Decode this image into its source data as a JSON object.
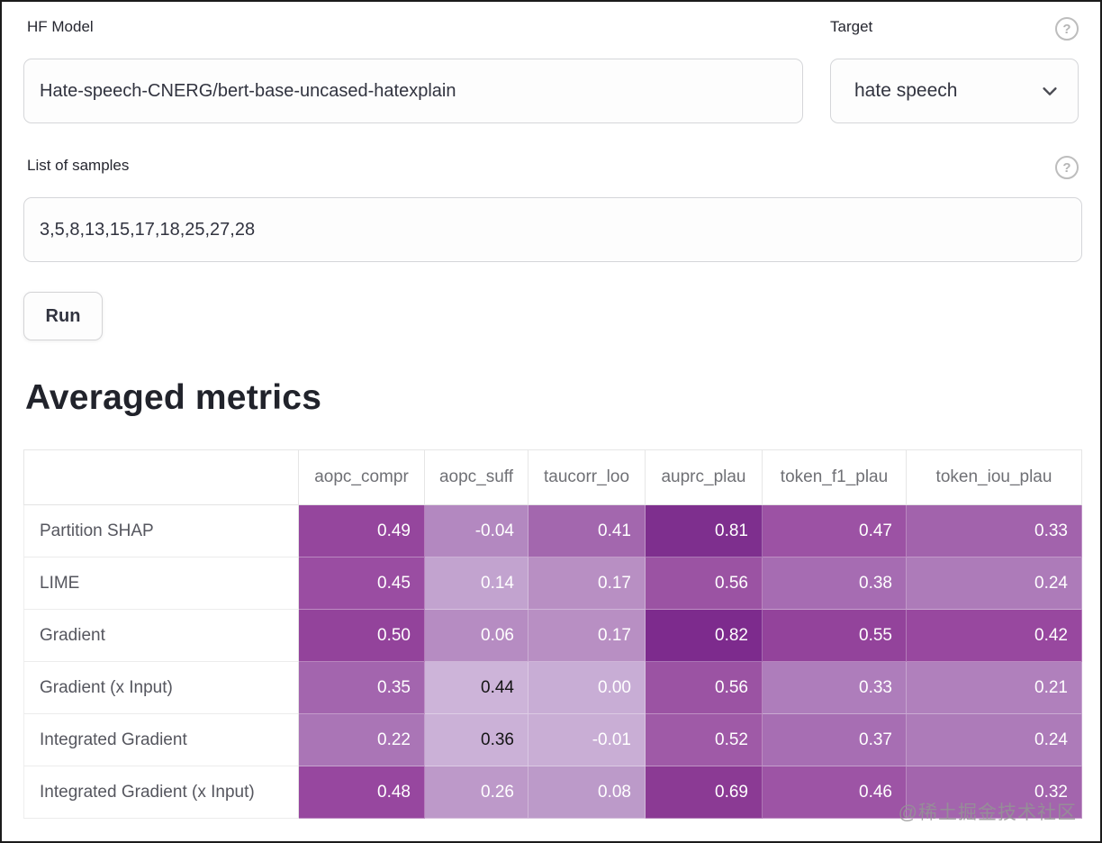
{
  "form": {
    "hf_model": {
      "label": "HF Model",
      "value": "Hate-speech-CNERG/bert-base-uncased-hatexplain"
    },
    "target": {
      "label": "Target",
      "value": "hate speech",
      "help_glyph": "?"
    },
    "samples": {
      "label": "List of samples",
      "value": "3,5,8,13,15,17,18,25,27,28",
      "help_glyph": "?"
    },
    "run_label": "Run"
  },
  "section_title": "Averaged metrics",
  "chart_data": {
    "type": "heatmap",
    "title": "Averaged metrics",
    "columns": [
      "aopc_compr",
      "aopc_suff",
      "taucorr_loo",
      "auprc_plau",
      "token_f1_plau",
      "token_iou_plau"
    ],
    "rows": [
      {
        "label": "Partition SHAP",
        "values": [
          "0.49",
          "-0.04",
          "0.41",
          "0.81",
          "0.47",
          "0.33"
        ],
        "bg": [
          "#95469d",
          "#b388c0",
          "#a367ae",
          "#7e2f8e",
          "#9c52a4",
          "#a263ac"
        ],
        "fg": [
          "#ffffff",
          "#ffffff",
          "#ffffff",
          "#ffffff",
          "#ffffff",
          "#ffffff"
        ]
      },
      {
        "label": "LIME",
        "values": [
          "0.45",
          "0.14",
          "0.17",
          "0.56",
          "0.38",
          "0.24"
        ],
        "bg": [
          "#9a4da2",
          "#c2a3cf",
          "#b88fc3",
          "#9b53a3",
          "#a66cb2",
          "#ad7bb9"
        ],
        "fg": [
          "#ffffff",
          "#ffffff",
          "#ffffff",
          "#ffffff",
          "#ffffff",
          "#ffffff"
        ]
      },
      {
        "label": "Gradient",
        "values": [
          "0.50",
          "0.06",
          "0.17",
          "0.82",
          "0.55",
          "0.42"
        ],
        "bg": [
          "#93439b",
          "#b68cc2",
          "#b88fc3",
          "#7d2b8d",
          "#93439b",
          "#98489f"
        ],
        "fg": [
          "#ffffff",
          "#ffffff",
          "#ffffff",
          "#ffffff",
          "#ffffff",
          "#ffffff"
        ]
      },
      {
        "label": "Gradient (x Input)",
        "values": [
          "0.35",
          "0.44",
          "0.00",
          "0.56",
          "0.33",
          "0.21"
        ],
        "bg": [
          "#a365ae",
          "#cdb4d9",
          "#c8add5",
          "#9b53a3",
          "#ae7dbb",
          "#b080bc"
        ],
        "fg": [
          "#ffffff",
          "#151515",
          "#ffffff",
          "#ffffff",
          "#ffffff",
          "#ffffff"
        ]
      },
      {
        "label": "Integrated Gradient",
        "values": [
          "0.22",
          "0.36",
          "-0.01",
          "0.52",
          "0.37",
          "0.24"
        ],
        "bg": [
          "#aa75b6",
          "#cbb1d7",
          "#c9aed5",
          "#9f5aa7",
          "#a76eb3",
          "#ad7bb9"
        ],
        "fg": [
          "#ffffff",
          "#151515",
          "#ffffff",
          "#ffffff",
          "#ffffff",
          "#ffffff"
        ]
      },
      {
        "label": "Integrated Gradient (x Input)",
        "values": [
          "0.48",
          "0.26",
          "0.08",
          "0.69",
          "0.46",
          "0.32"
        ],
        "bg": [
          "#97479f",
          "#bd99c9",
          "#bc9ac9",
          "#8b3a94",
          "#9d54a5",
          "#a365ad"
        ],
        "fg": [
          "#ffffff",
          "#ffffff",
          "#ffffff",
          "#ffffff",
          "#ffffff",
          "#ffffff"
        ]
      }
    ],
    "colorscale": {
      "dark": "#7d2b8d",
      "light": "#cdb4d9"
    }
  },
  "watermark": "@稀土掘金技术社区"
}
